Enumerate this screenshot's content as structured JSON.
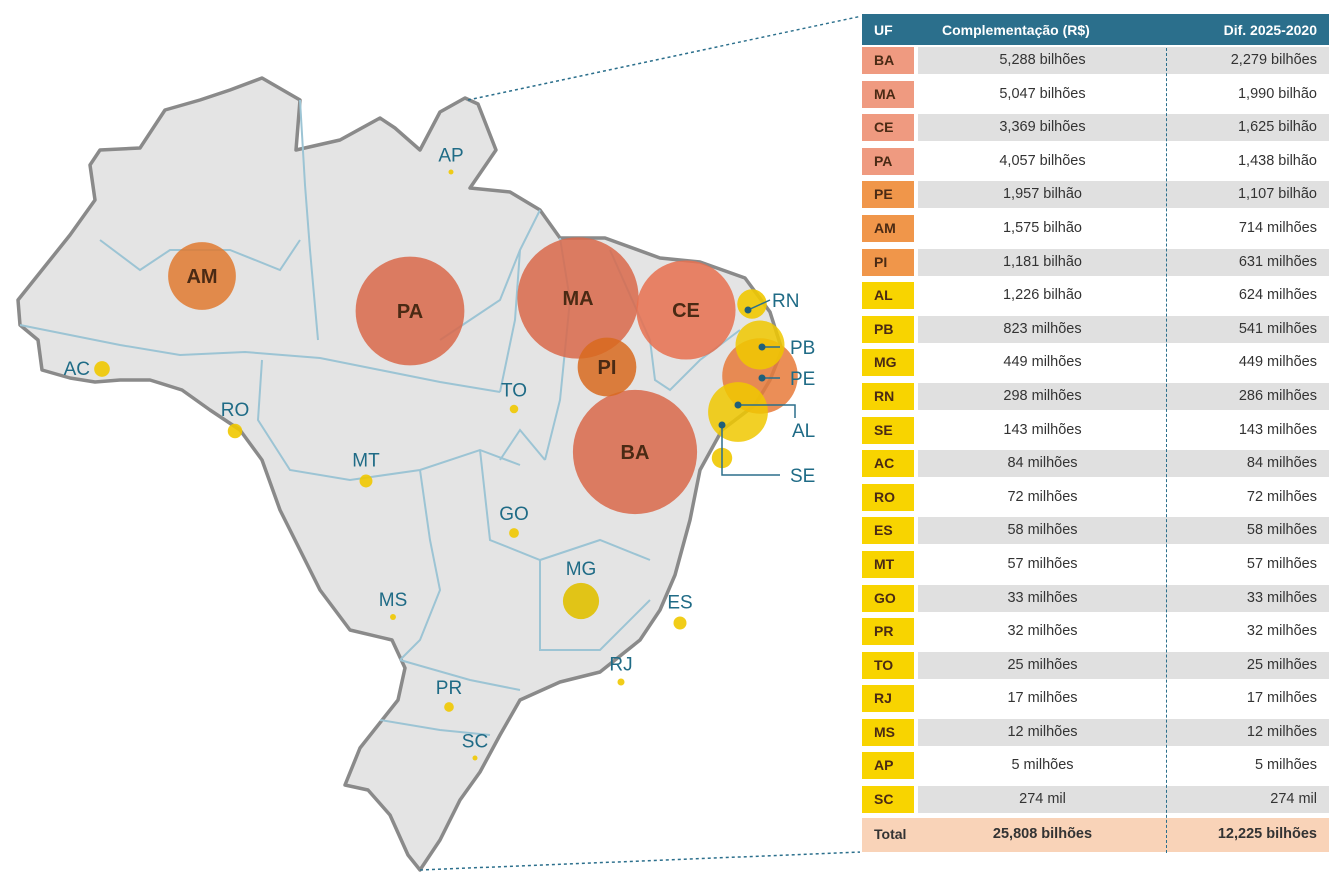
{
  "table": {
    "headers": {
      "uf": "UF",
      "complementacao": "Complementação (R$)",
      "dif": "Dif. 2025-2020"
    },
    "rows": [
      {
        "uf": "BA",
        "complementacao": "5,288 bilhões",
        "dif": "2,279 bilhões",
        "color": "#ef9a80"
      },
      {
        "uf": "MA",
        "complementacao": "5,047 bilhões",
        "dif": "1,990 bilhão",
        "color": "#ef9a80"
      },
      {
        "uf": "CE",
        "complementacao": "3,369 bilhões",
        "dif": "1,625 bilhão",
        "color": "#ef9a80"
      },
      {
        "uf": "PA",
        "complementacao": "4,057 bilhões",
        "dif": "1,438 bilhão",
        "color": "#ef9a80"
      },
      {
        "uf": "PE",
        "complementacao": "1,957 bilhão",
        "dif": "1,107 bilhão",
        "color": "#f0964a"
      },
      {
        "uf": "AM",
        "complementacao": "1,575 bilhão",
        "dif": "714 milhões",
        "color": "#f0964a"
      },
      {
        "uf": "PI",
        "complementacao": "1,181 bilhão",
        "dif": "631 milhões",
        "color": "#f0964a"
      },
      {
        "uf": "AL",
        "complementacao": "1,226 bilhão",
        "dif": "624 milhões",
        "color": "#f8d400"
      },
      {
        "uf": "PB",
        "complementacao": "823 milhões",
        "dif": "541 milhões",
        "color": "#f8d400"
      },
      {
        "uf": "MG",
        "complementacao": "449 milhões",
        "dif": "449 milhões",
        "color": "#f8d400"
      },
      {
        "uf": "RN",
        "complementacao": "298 milhões",
        "dif": "286 milhões",
        "color": "#f8d400"
      },
      {
        "uf": "SE",
        "complementacao": "143 milhões",
        "dif": "143 milhões",
        "color": "#f8d400"
      },
      {
        "uf": "AC",
        "complementacao": "84 milhões",
        "dif": "84 milhões",
        "color": "#f8d400"
      },
      {
        "uf": "RO",
        "complementacao": "72 milhões",
        "dif": "72 milhões",
        "color": "#f8d400"
      },
      {
        "uf": "ES",
        "complementacao": "58 milhões",
        "dif": "58 milhões",
        "color": "#f8d400"
      },
      {
        "uf": "MT",
        "complementacao": "57 milhões",
        "dif": "57 milhões",
        "color": "#f8d400"
      },
      {
        "uf": "GO",
        "complementacao": "33 milhões",
        "dif": "33 milhões",
        "color": "#f8d400"
      },
      {
        "uf": "PR",
        "complementacao": "32 milhões",
        "dif": "32 milhões",
        "color": "#f8d400"
      },
      {
        "uf": "TO",
        "complementacao": "25 milhões",
        "dif": "25 milhões",
        "color": "#f8d400"
      },
      {
        "uf": "RJ",
        "complementacao": "17 milhões",
        "dif": "17 milhões",
        "color": "#f8d400"
      },
      {
        "uf": "MS",
        "complementacao": "12 milhões",
        "dif": "12 milhões",
        "color": "#f8d400"
      },
      {
        "uf": "AP",
        "complementacao": "5 milhões",
        "dif": "5 milhões",
        "color": "#f8d400"
      },
      {
        "uf": "SC",
        "complementacao": "274 mil",
        "dif": "274 mil",
        "color": "#f8d400"
      }
    ],
    "total": {
      "uf": "Total",
      "complementacao": "25,808 bilhões",
      "dif": "12,225 bilhões"
    }
  },
  "map": {
    "bubbles": [
      {
        "uf": "AM",
        "value_bi": 1.575,
        "color": "#e07a30"
      },
      {
        "uf": "PA",
        "value_bi": 4.057,
        "color": "#d9694a"
      },
      {
        "uf": "MA",
        "value_bi": 5.047,
        "color": "#d9694a"
      },
      {
        "uf": "CE",
        "value_bi": 3.369,
        "color": "#e8704f"
      },
      {
        "uf": "PI",
        "value_bi": 1.181,
        "color": "#d86a1e"
      },
      {
        "uf": "BA",
        "value_bi": 5.288,
        "color": "#d9694a"
      },
      {
        "uf": "PE",
        "value_bi": 1.957,
        "color": "#e87a3a"
      },
      {
        "uf": "AL",
        "value_bi": 1.226,
        "color": "#f0c800"
      },
      {
        "uf": "PB",
        "value_bi": 0.823,
        "color": "#f0c800"
      },
      {
        "uf": "RN",
        "value_bi": 0.298,
        "color": "#f0c800"
      },
      {
        "uf": "SE",
        "value_bi": 0.143,
        "color": "#f0c800"
      },
      {
        "uf": "MG",
        "value_bi": 0.449,
        "color": "#e0c000"
      },
      {
        "uf": "AC",
        "value_bi": 0.084,
        "color": "#f0c800"
      },
      {
        "uf": "RO",
        "value_bi": 0.072,
        "color": "#f0c800"
      },
      {
        "uf": "ES",
        "value_bi": 0.058,
        "color": "#f0c800"
      },
      {
        "uf": "MT",
        "value_bi": 0.057,
        "color": "#f0c800"
      },
      {
        "uf": "GO",
        "value_bi": 0.033,
        "color": "#f0c800"
      },
      {
        "uf": "PR",
        "value_bi": 0.032,
        "color": "#f0c800"
      },
      {
        "uf": "TO",
        "value_bi": 0.025,
        "color": "#f0c800"
      },
      {
        "uf": "RJ",
        "value_bi": 0.017,
        "color": "#f0c800"
      },
      {
        "uf": "MS",
        "value_bi": 0.012,
        "color": "#f0c800"
      },
      {
        "uf": "AP",
        "value_bi": 0.005,
        "color": "#f0c800"
      },
      {
        "uf": "SC",
        "value_bi": 0.000274,
        "color": "#f0c800"
      }
    ]
  },
  "colors": {
    "header": "#2b6f8c",
    "total_bg": "#f9d3b8",
    "map_fill": "#e4e4e4",
    "rivers": "#9cc4d4"
  }
}
